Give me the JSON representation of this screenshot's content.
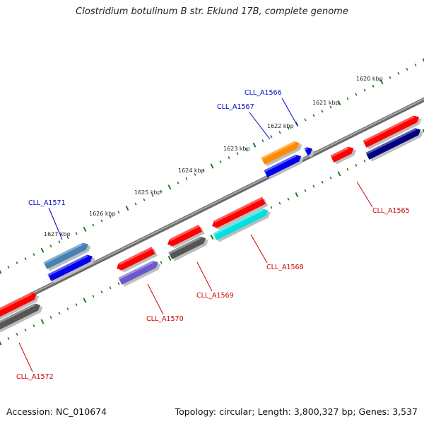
{
  "title": "Clostridium botulinum B str. Eklund 17B, complete genome",
  "footer": {
    "accession": "Accession: NC_010674",
    "summary": "Topology: circular; Length: 3,800,327 bp; Genes: 3,537"
  },
  "colors": {
    "backbone": "#808080",
    "tick": "#1f7a1f",
    "label_forward": "#0000cc",
    "label_reverse": "#cc0000"
  },
  "scale_labels": [
    "1620 kbp",
    "1621 kbp",
    "1622 kbp",
    "1623 kbp",
    "1624 kbp",
    "1625 kbp",
    "1626 kbp",
    "1627 kbp"
  ],
  "genes": [
    {
      "name": "CLL_A1565",
      "color": "#ff0000"
    },
    {
      "name": "CLL_A1566",
      "color": "#0000ee"
    },
    {
      "name": "CLL_A1567",
      "color": "#ff8c00"
    },
    {
      "name": "CLL_A1568",
      "color": "#ff0000"
    },
    {
      "name": "CLL_A1569",
      "color": "#ff0000"
    },
    {
      "name": "CLL_A1570",
      "color": "#ff0000"
    },
    {
      "name": "CLL_A1571",
      "color": "#4682b4"
    },
    {
      "name": "CLL_A1572",
      "color": "#ff0000"
    }
  ]
}
